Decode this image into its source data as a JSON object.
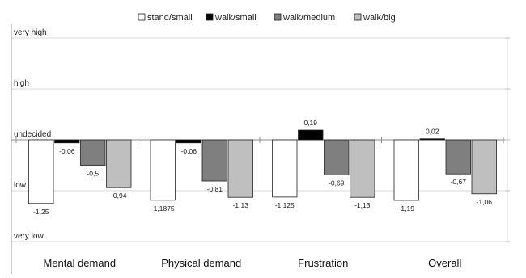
{
  "chart_data": {
    "type": "bar",
    "categories": [
      "Mental demand",
      "Physical demand",
      "Frustration",
      "Overall"
    ],
    "series": [
      {
        "name": "stand/small",
        "values": [
          -1.25,
          -1.1875,
          -1.125,
          -1.19
        ],
        "labels": [
          "-1,25",
          "-1,1875",
          "-1,125",
          "-1,19"
        ],
        "color": "#ffffff"
      },
      {
        "name": "walk/small",
        "values": [
          -0.06,
          -0.06,
          0.19,
          0.02
        ],
        "labels": [
          "-0,06",
          "-0,06",
          "0,19",
          "0,02"
        ],
        "color": "#000000"
      },
      {
        "name": "walk/medium",
        "values": [
          -0.5,
          -0.81,
          -0.69,
          -0.67
        ],
        "labels": [
          "-0,5",
          "-0,81",
          "-0,69",
          "-0,67"
        ],
        "color": "#7f7f7f"
      },
      {
        "name": "walk/big",
        "values": [
          -0.94,
          -1.13,
          -1.13,
          -1.06
        ],
        "labels": [
          "-0,94",
          "-1,13",
          "-1,13",
          "-1,06"
        ],
        "color": "#bfbfbf"
      }
    ],
    "y_ticks": [
      {
        "value": 2,
        "label": "very high"
      },
      {
        "value": 1,
        "label": "high"
      },
      {
        "value": 0,
        "label": "undecided"
      },
      {
        "value": -1,
        "label": "low"
      },
      {
        "value": -2,
        "label": "very low"
      }
    ],
    "ylim": [
      -2,
      2
    ],
    "legend_position": "top",
    "grid": true
  }
}
